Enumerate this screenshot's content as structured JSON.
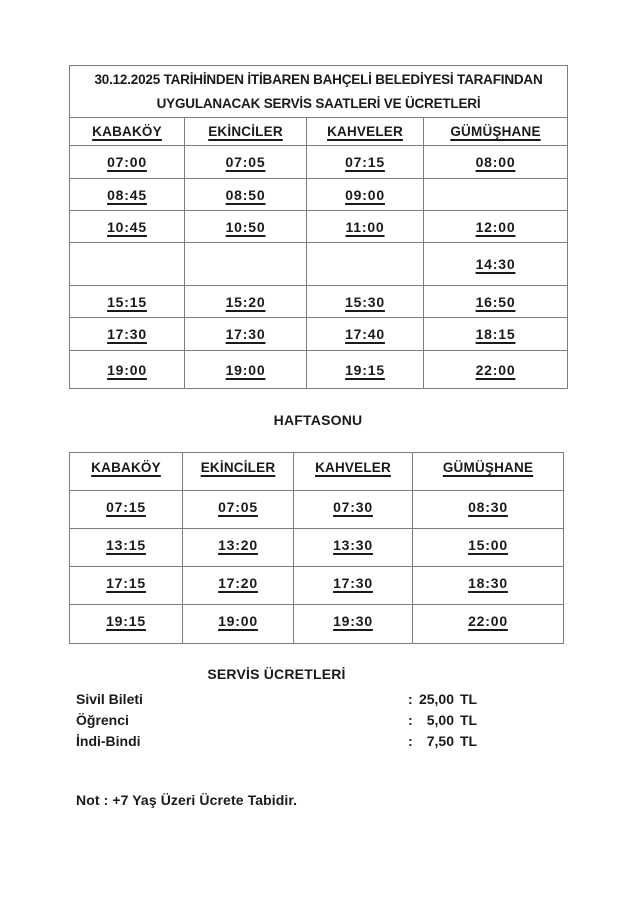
{
  "page": {
    "title_line1": "30.12.2025 TARİHİNDEN İTİBAREN BAHÇELİ BELEDİYESİ TARAFINDAN",
    "title_line2": "UYGULANACAK SERVİS SAATLERİ VE ÜCRETLERİ"
  },
  "weekday_table": {
    "headers": [
      "KABAKÖY",
      "EKİNCİLER",
      "KAHVELER",
      "GÜMÜŞHANE"
    ],
    "rows": [
      [
        "07:00",
        "07:05",
        "07:15",
        "08:00"
      ],
      [
        "08:45",
        "08:50",
        "09:00",
        ""
      ],
      [
        "10:45",
        "10:50",
        "11:00",
        "12:00"
      ],
      [
        "",
        "",
        "",
        "14:30"
      ],
      [
        "15:15",
        "15:20",
        "15:30",
        "16:50"
      ],
      [
        "17:30",
        "17:30",
        "17:40",
        "18:15"
      ],
      [
        "19:00",
        "19:00",
        "19:15",
        "22:00"
      ]
    ]
  },
  "weekend": {
    "heading": "HAFTASONU",
    "table": {
      "headers": [
        "KABAKÖY",
        "EKİNCİLER",
        "KAHVELER",
        "GÜMÜŞHANE"
      ],
      "rows": [
        [
          "07:15",
          "07:05",
          "07:30",
          "08:30"
        ],
        [
          "13:15",
          "13:20",
          "13:30",
          "15:00"
        ],
        [
          "17:15",
          "17:20",
          "17:30",
          "18:30"
        ],
        [
          "19:15",
          "19:00",
          "19:30",
          "22:00"
        ]
      ]
    }
  },
  "fares": {
    "heading": "SERVİS ÜCRETLERİ",
    "items": [
      {
        "label": "Sivil Bileti",
        "colon": ":",
        "amount": "25,00",
        "currency": "TL"
      },
      {
        "label": "Öğrenci",
        "colon": ":",
        "amount": "5,00",
        "currency": "TL"
      },
      {
        "label": "İndi-Bindi",
        "colon": ":",
        "amount": "7,50",
        "currency": "TL"
      }
    ]
  },
  "note": "Not : +7 Yaş Üzeri Ücrete Tabidir."
}
